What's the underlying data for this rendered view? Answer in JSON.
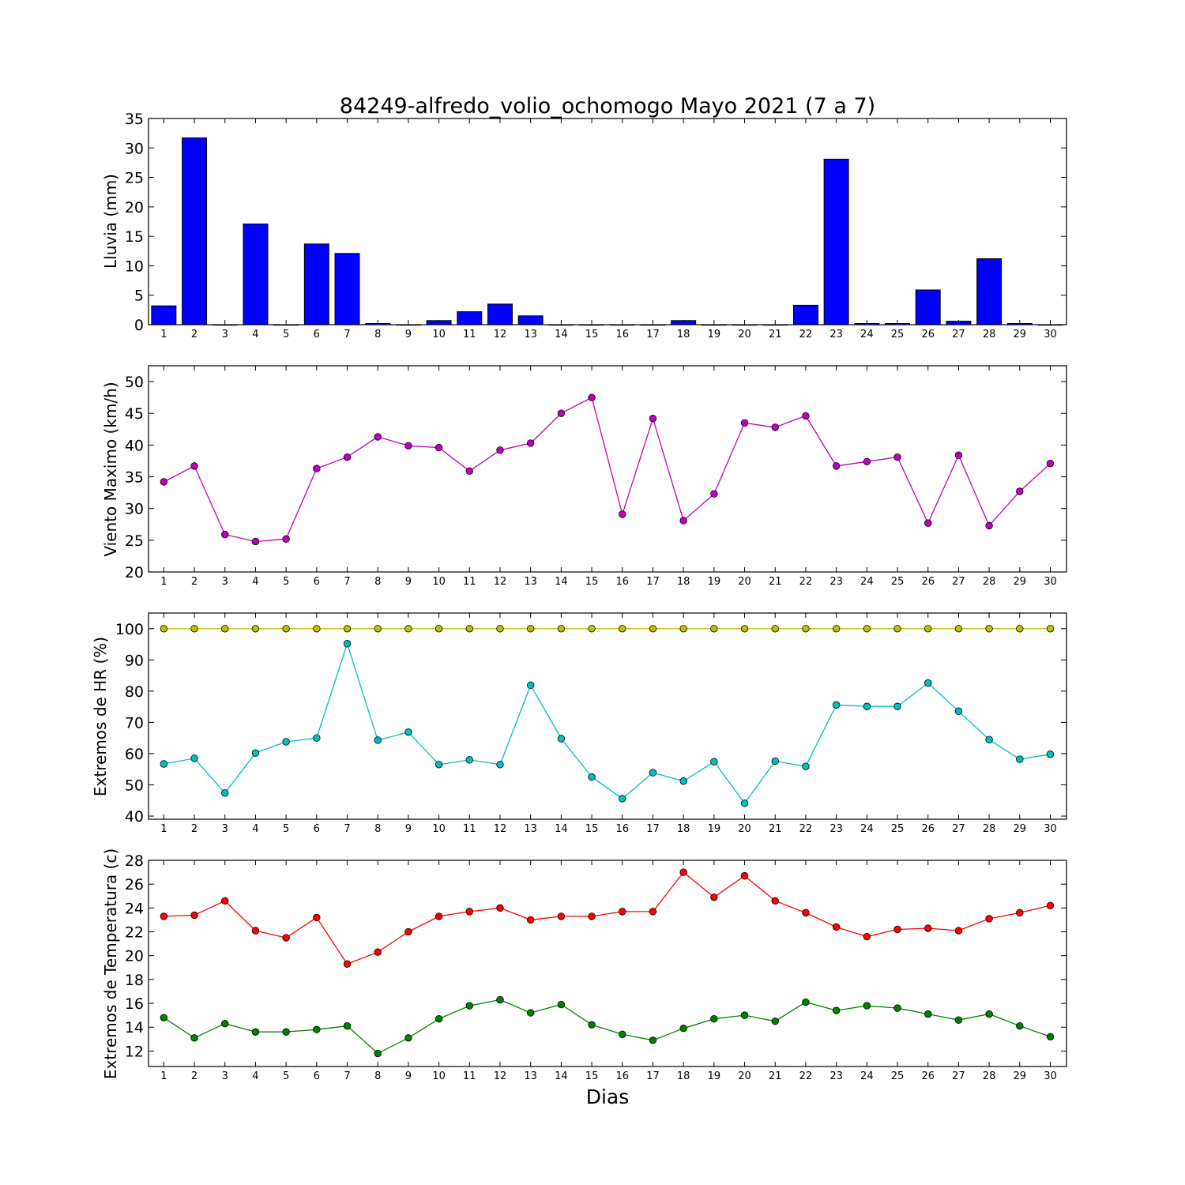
{
  "figure": {
    "title": "84249-alfredo_volio_ochomogo Mayo 2021  (7 a 7)",
    "xlabel": "Dias"
  },
  "chart_data": [
    {
      "type": "bar",
      "ylabel": "Lluvia (mm)",
      "categories": [
        "1",
        "2",
        "3",
        "4",
        "5",
        "6",
        "7",
        "8",
        "9",
        "10",
        "11",
        "12",
        "13",
        "14",
        "15",
        "16",
        "17",
        "18",
        "19",
        "20",
        "21",
        "22",
        "23",
        "24",
        "25",
        "26",
        "27",
        "28",
        "29",
        "30"
      ],
      "ylim": [
        0,
        35
      ],
      "yticks": [
        0,
        5,
        10,
        15,
        20,
        25,
        30,
        35
      ],
      "series": [
        {
          "color": "#0000ff",
          "values": [
            3.2,
            31.7,
            0,
            17.1,
            0,
            13.7,
            12.1,
            0.2,
            0,
            0.7,
            2.2,
            3.5,
            1.5,
            0,
            0,
            0,
            0,
            0.7,
            0,
            0,
            0,
            3.3,
            28.1,
            0.2,
            0.2,
            5.9,
            0.6,
            11.2,
            0.2,
            0
          ]
        }
      ]
    },
    {
      "type": "line",
      "ylabel": "Viento Maximo (km/h)",
      "categories": [
        "1",
        "2",
        "3",
        "4",
        "5",
        "6",
        "7",
        "8",
        "9",
        "10",
        "11",
        "12",
        "13",
        "14",
        "15",
        "16",
        "17",
        "18",
        "19",
        "20",
        "21",
        "22",
        "23",
        "24",
        "25",
        "26",
        "27",
        "28",
        "29",
        "30"
      ],
      "ylim": [
        20,
        52.5
      ],
      "yticks": [
        20,
        25,
        30,
        35,
        40,
        45,
        50
      ],
      "series": [
        {
          "color": "#bf00bf",
          "values": [
            34.2,
            36.7,
            25.9,
            24.8,
            25.2,
            36.3,
            38.1,
            41.3,
            39.9,
            39.6,
            35.9,
            39.2,
            40.3,
            45.0,
            47.5,
            29.1,
            44.2,
            28.1,
            32.3,
            43.5,
            42.8,
            44.6,
            36.7,
            37.4,
            38.1,
            27.7,
            38.4,
            27.3,
            32.7,
            37.1
          ]
        }
      ]
    },
    {
      "type": "line",
      "ylabel": "Extremos de HR (%)",
      "categories": [
        "1",
        "2",
        "3",
        "4",
        "5",
        "6",
        "7",
        "8",
        "9",
        "10",
        "11",
        "12",
        "13",
        "14",
        "15",
        "16",
        "17",
        "18",
        "19",
        "20",
        "21",
        "22",
        "23",
        "24",
        "25",
        "26",
        "27",
        "28",
        "29",
        "30"
      ],
      "ylim": [
        39,
        105
      ],
      "yticks": [
        40,
        50,
        60,
        70,
        80,
        90,
        100
      ],
      "series": [
        {
          "color": "#bfbf00",
          "values": [
            100,
            100,
            100,
            100,
            100,
            100,
            100,
            100,
            100,
            100,
            100,
            100,
            100,
            100,
            100,
            100,
            100,
            100,
            100,
            100,
            100,
            100,
            100,
            100,
            100,
            100,
            100,
            100,
            100,
            100
          ]
        },
        {
          "color": "#00bfbf",
          "values": [
            56.7,
            58.5,
            47.4,
            60.2,
            63.8,
            65.0,
            95.2,
            64.3,
            66.9,
            56.5,
            58.0,
            56.5,
            81.9,
            64.8,
            52.5,
            45.6,
            53.9,
            51.2,
            57.4,
            44.1,
            57.6,
            55.9,
            75.6,
            75.1,
            75.1,
            82.6,
            73.6,
            64.5,
            58.2,
            59.8
          ]
        }
      ]
    },
    {
      "type": "line",
      "ylabel": "Extremos de Temperatura (c)",
      "categories": [
        "1",
        "2",
        "3",
        "4",
        "5",
        "6",
        "7",
        "8",
        "9",
        "10",
        "11",
        "12",
        "13",
        "14",
        "15",
        "16",
        "17",
        "18",
        "19",
        "20",
        "21",
        "22",
        "23",
        "24",
        "25",
        "26",
        "27",
        "28",
        "29",
        "30"
      ],
      "ylim": [
        10.7,
        28
      ],
      "yticks": [
        12,
        14,
        16,
        18,
        20,
        22,
        24,
        26,
        28
      ],
      "series": [
        {
          "color": "#ff0000",
          "values": [
            23.3,
            23.4,
            24.6,
            22.1,
            21.5,
            23.2,
            19.3,
            20.3,
            22.0,
            23.3,
            23.7,
            24.0,
            23.0,
            23.3,
            23.3,
            23.7,
            23.7,
            27.0,
            24.9,
            26.7,
            24.6,
            23.6,
            22.4,
            21.6,
            22.2,
            22.3,
            22.1,
            23.1,
            23.6,
            24.2
          ]
        },
        {
          "color": "#008000",
          "values": [
            14.8,
            13.1,
            14.3,
            13.6,
            13.6,
            13.8,
            14.1,
            11.8,
            13.1,
            14.7,
            15.8,
            16.3,
            15.2,
            15.9,
            14.2,
            13.4,
            12.9,
            13.9,
            14.7,
            15.0,
            14.5,
            16.1,
            15.4,
            15.8,
            15.6,
            15.1,
            14.6,
            15.1,
            14.1,
            13.2
          ]
        }
      ]
    }
  ]
}
